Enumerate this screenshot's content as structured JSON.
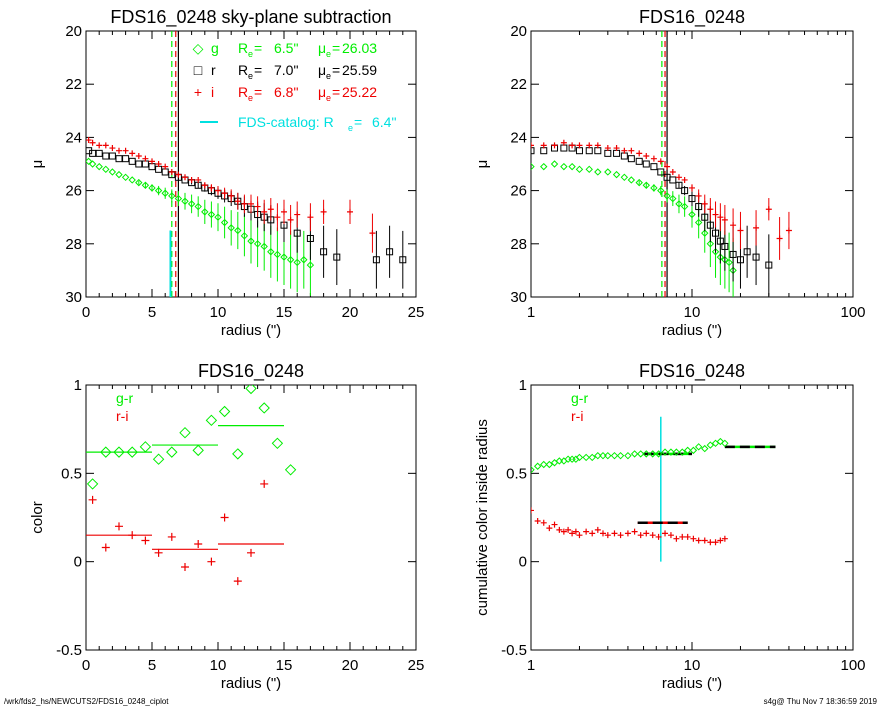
{
  "footer": {
    "left": "/wrk/fds2_hs/NEWCUTS2/FDS16_0248_ciplot",
    "right": "s4g@  Thu Nov  7 18:36:59 2019"
  },
  "colors": {
    "g": "#00ee00",
    "r": "#000000",
    "i": "#ee0000",
    "catalog": "#00e0e0"
  },
  "chart_data": [
    {
      "id": "tl",
      "type": "scatter",
      "title": "FDS16_0248 sky-plane subtraction",
      "xlabel": "radius (\")",
      "ylabel": "μ",
      "xscale": "linear",
      "xlim": [
        0,
        25
      ],
      "ylim": [
        30,
        20
      ],
      "xticks": [
        0,
        5,
        10,
        15,
        20,
        25
      ],
      "yticks": [
        20,
        22,
        24,
        26,
        28,
        30
      ],
      "legend": [
        {
          "symbol": "◇",
          "band": "g",
          "re": "6.5\"",
          "mu": "26.03"
        },
        {
          "symbol": "□",
          "band": "r",
          "re": "7.0\"",
          "mu": "25.59"
        },
        {
          "symbol": "+",
          "band": "i",
          "re": "6.8\"",
          "mu": "25.22"
        }
      ],
      "catalog_label": "FDS-catalog: R",
      "catalog_re": "6.4\"",
      "vlines": [
        {
          "x": 6.5,
          "band": "g",
          "style": "dashed"
        },
        {
          "x": 6.8,
          "band": "i",
          "style": "dashed"
        },
        {
          "x": 7.0,
          "band": "r",
          "style": "solid"
        },
        {
          "x": 6.4,
          "band": "catalog",
          "style": "solid",
          "y1": 27.5,
          "y2": 30
        }
      ],
      "series": [
        {
          "band": "g",
          "x": [
            0.2,
            0.5,
            1,
            1.5,
            2,
            2.5,
            3,
            3.5,
            4,
            4.5,
            5,
            5.5,
            6,
            6.5,
            7,
            7.5,
            8,
            8.5,
            9,
            9.5,
            10,
            10.5,
            11,
            11.5,
            12,
            12.5,
            13,
            13.5,
            14,
            14.5,
            15,
            15.5,
            16,
            16.5,
            17
          ],
          "y": [
            24.9,
            25.0,
            25.1,
            25.2,
            25.3,
            25.4,
            25.5,
            25.6,
            25.7,
            25.8,
            25.9,
            26.0,
            26.1,
            26.2,
            26.3,
            26.4,
            26.5,
            26.6,
            26.8,
            26.9,
            27.0,
            27.2,
            27.4,
            27.5,
            27.7,
            27.9,
            28.0,
            28.1,
            28.3,
            28.4,
            28.5,
            28.6,
            28.7,
            28.6,
            28.8
          ]
        },
        {
          "band": "r",
          "x": [
            0.2,
            0.5,
            1,
            1.5,
            2,
            2.5,
            3,
            3.5,
            4,
            4.5,
            5,
            5.5,
            6,
            6.5,
            7,
            7.5,
            8,
            8.5,
            9,
            9.5,
            10,
            10.5,
            11,
            11.5,
            12,
            12.5,
            13,
            13.5,
            14,
            15,
            16,
            17,
            18,
            19,
            22,
            23,
            24
          ],
          "y": [
            24.5,
            24.6,
            24.6,
            24.7,
            24.7,
            24.8,
            24.8,
            24.9,
            25.0,
            25.0,
            25.1,
            25.2,
            25.3,
            25.4,
            25.5,
            25.6,
            25.7,
            25.8,
            25.9,
            26.0,
            26.1,
            26.2,
            26.3,
            26.4,
            26.6,
            26.7,
            26.9,
            27.0,
            27.1,
            27.3,
            27.6,
            27.8,
            28.3,
            28.5,
            28.6,
            28.3,
            28.6
          ]
        },
        {
          "band": "i",
          "x": [
            0.2,
            0.5,
            1,
            1.5,
            2,
            2.5,
            3,
            3.5,
            4,
            4.5,
            5,
            5.5,
            6,
            6.5,
            7,
            7.5,
            8,
            8.5,
            9,
            9.5,
            10,
            10.5,
            11,
            11.5,
            12,
            12.5,
            13,
            13.5,
            14,
            14.5,
            15,
            15.5,
            16,
            17,
            18,
            20,
            21.7
          ],
          "y": [
            24.1,
            24.2,
            24.3,
            24.3,
            24.4,
            24.5,
            24.5,
            24.6,
            24.7,
            24.8,
            24.9,
            25.0,
            25.1,
            25.3,
            25.4,
            25.5,
            25.6,
            25.6,
            25.8,
            25.9,
            26.0,
            26.1,
            26.2,
            26.4,
            26.5,
            26.5,
            26.6,
            26.8,
            26.7,
            27.0,
            26.8,
            27.1,
            26.9,
            27.0,
            26.8,
            26.8,
            27.6
          ]
        }
      ]
    },
    {
      "id": "tr",
      "type": "scatter",
      "title": "FDS16_0248",
      "xlabel": "radius (\")",
      "ylabel": "μ",
      "xscale": "log",
      "xlim": [
        1,
        100
      ],
      "ylim": [
        30,
        20
      ],
      "xticks": [
        1,
        10,
        100
      ],
      "yticks": [
        20,
        22,
        24,
        26,
        28,
        30
      ],
      "vlines": [
        {
          "x": 6.5,
          "band": "g",
          "style": "dashed"
        },
        {
          "x": 6.8,
          "band": "i",
          "style": "dashed"
        },
        {
          "x": 7.0,
          "band": "r",
          "style": "solid"
        }
      ],
      "series": [
        {
          "band": "g",
          "x": [
            1,
            1.2,
            1.4,
            1.6,
            1.8,
            2,
            2.3,
            2.6,
            3,
            3.4,
            3.8,
            4.2,
            4.7,
            5.2,
            5.8,
            6.4,
            7,
            7.6,
            8.3,
            9,
            10,
            11,
            12,
            13,
            14,
            15,
            16,
            17,
            18
          ],
          "y": [
            25.1,
            25.1,
            25.0,
            25.1,
            25.1,
            25.2,
            25.2,
            25.3,
            25.3,
            25.4,
            25.5,
            25.6,
            25.7,
            25.8,
            25.9,
            26.0,
            26.2,
            26.3,
            26.5,
            26.6,
            26.9,
            27.2,
            27.6,
            28.0,
            28.3,
            28.5,
            28.6,
            28.7,
            29.0
          ]
        },
        {
          "band": "r",
          "x": [
            1,
            1.2,
            1.4,
            1.6,
            1.8,
            2,
            2.3,
            2.6,
            3,
            3.4,
            3.8,
            4.2,
            4.7,
            5.2,
            5.8,
            6.4,
            7,
            7.6,
            8.3,
            9,
            10,
            11,
            12,
            13,
            14,
            15,
            16,
            18,
            20,
            22,
            25,
            30
          ],
          "y": [
            24.5,
            24.5,
            24.4,
            24.4,
            24.4,
            24.5,
            24.5,
            24.5,
            24.6,
            24.6,
            24.7,
            24.8,
            24.9,
            25.0,
            25.1,
            25.3,
            25.5,
            25.6,
            25.8,
            26.0,
            26.3,
            26.6,
            27.0,
            27.3,
            27.6,
            27.9,
            28.1,
            28.4,
            28.6,
            28.3,
            28.5,
            28.8
          ]
        },
        {
          "band": "i",
          "x": [
            1,
            1.2,
            1.4,
            1.6,
            1.8,
            2,
            2.3,
            2.6,
            3,
            3.4,
            3.8,
            4.2,
            4.7,
            5.2,
            5.8,
            6.4,
            7,
            7.6,
            8.3,
            9,
            10,
            11,
            12,
            13,
            14,
            15,
            16,
            18,
            20,
            25,
            30,
            35,
            40
          ],
          "y": [
            24.3,
            24.3,
            24.3,
            24.2,
            24.3,
            24.3,
            24.3,
            24.3,
            24.4,
            24.4,
            24.5,
            24.5,
            24.6,
            24.7,
            24.8,
            24.9,
            25.1,
            25.3,
            25.5,
            25.6,
            25.9,
            26.2,
            26.5,
            26.7,
            26.9,
            27.0,
            27.1,
            27.3,
            27.5,
            27.4,
            26.7,
            27.8,
            27.5
          ]
        }
      ]
    },
    {
      "id": "bl",
      "type": "scatter",
      "title": "FDS16_0248",
      "xlabel": "radius (\")",
      "ylabel": "color",
      "xscale": "linear",
      "xlim": [
        0,
        25
      ],
      "ylim": [
        -0.5,
        1.0
      ],
      "xticks": [
        0,
        5,
        10,
        15,
        20,
        25
      ],
      "yticks": [
        -0.5,
        0.0,
        0.5,
        1.0
      ],
      "legend": [
        "g-r",
        "r-i"
      ],
      "series": [
        {
          "name": "g-r",
          "band": "g",
          "x": [
            0.5,
            1.5,
            2.5,
            3.5,
            4.5,
            5.5,
            6.5,
            7.5,
            8.5,
            9.5,
            10.5,
            11.5,
            12.5,
            13.5,
            14.5,
            15.5
          ],
          "y": [
            0.44,
            0.62,
            0.62,
            0.62,
            0.65,
            0.58,
            0.62,
            0.73,
            0.63,
            0.8,
            0.85,
            0.61,
            0.98,
            0.87,
            0.67,
            0.52
          ]
        },
        {
          "name": "r-i",
          "band": "i",
          "x": [
            0.5,
            1.5,
            2.5,
            3.5,
            4.5,
            5.5,
            6.5,
            7.5,
            8.5,
            9.5,
            10.5,
            11.5,
            12.5,
            13.5
          ],
          "y": [
            0.35,
            0.08,
            0.2,
            0.15,
            0.12,
            0.05,
            0.14,
            -0.03,
            0.1,
            0.0,
            0.25,
            -0.11,
            0.05,
            0.44
          ]
        }
      ],
      "segments": [
        {
          "band": "g",
          "x1": 0,
          "x2": 5,
          "y": 0.62
        },
        {
          "band": "g",
          "x1": 5,
          "x2": 10,
          "y": 0.66
        },
        {
          "band": "g",
          "x1": 10,
          "x2": 15,
          "y": 0.77
        },
        {
          "band": "i",
          "x1": 0,
          "x2": 5,
          "y": 0.15
        },
        {
          "band": "i",
          "x1": 5,
          "x2": 10,
          "y": 0.07
        },
        {
          "band": "i",
          "x1": 10,
          "x2": 15,
          "y": 0.1
        }
      ]
    },
    {
      "id": "br",
      "type": "scatter",
      "title": "FDS16_0248",
      "xlabel": "radius (\")",
      "ylabel": "cumulative color inside radius",
      "xscale": "log",
      "xlim": [
        1,
        100
      ],
      "ylim": [
        -0.5,
        1.0
      ],
      "xticks": [
        1,
        10,
        100
      ],
      "yticks": [
        -0.5,
        0.0,
        0.5,
        1.0
      ],
      "legend": [
        "g-r",
        "r-i"
      ],
      "catalog_re": 6.4,
      "catalog_span": [
        0.0,
        0.82
      ],
      "series": [
        {
          "name": "g-r",
          "band": "g",
          "x": [
            1.0,
            1.1,
            1.2,
            1.3,
            1.4,
            1.5,
            1.6,
            1.7,
            1.8,
            1.9,
            2.0,
            2.2,
            2.4,
            2.6,
            2.8,
            3.0,
            3.3,
            3.6,
            4.0,
            4.4,
            4.8,
            5.2,
            5.7,
            6.2,
            6.8,
            7.4,
            8.0,
            8.7,
            9.4,
            10.2,
            11.0,
            12.0,
            13.0,
            14.0,
            15.0,
            16.0
          ],
          "y": [
            0.52,
            0.54,
            0.55,
            0.55,
            0.56,
            0.57,
            0.57,
            0.58,
            0.58,
            0.58,
            0.59,
            0.59,
            0.59,
            0.6,
            0.6,
            0.6,
            0.6,
            0.6,
            0.6,
            0.61,
            0.61,
            0.61,
            0.61,
            0.61,
            0.62,
            0.62,
            0.62,
            0.62,
            0.63,
            0.63,
            0.65,
            0.64,
            0.66,
            0.67,
            0.68,
            0.67
          ]
        },
        {
          "name": "r-i",
          "band": "i",
          "x": [
            1.0,
            1.1,
            1.2,
            1.3,
            1.4,
            1.5,
            1.6,
            1.7,
            1.8,
            1.9,
            2.0,
            2.2,
            2.4,
            2.6,
            2.8,
            3.0,
            3.3,
            3.6,
            4.0,
            4.4,
            4.8,
            5.2,
            5.7,
            6.2,
            6.8,
            7.4,
            8.0,
            8.7,
            9.4,
            10.2,
            11.0,
            12.0,
            13.0,
            14.0,
            15.0,
            16.0
          ],
          "y": [
            0.29,
            0.23,
            0.22,
            0.19,
            0.21,
            0.18,
            0.17,
            0.18,
            0.16,
            0.17,
            0.15,
            0.17,
            0.16,
            0.18,
            0.16,
            0.15,
            0.16,
            0.15,
            0.16,
            0.17,
            0.15,
            0.16,
            0.15,
            0.14,
            0.16,
            0.15,
            0.13,
            0.14,
            0.14,
            0.13,
            0.12,
            0.12,
            0.11,
            0.11,
            0.12,
            0.13
          ]
        }
      ],
      "segments": [
        {
          "band": "g",
          "x1": 5,
          "x2": 10,
          "y": 0.61,
          "black_dash": true
        },
        {
          "band": "g",
          "x1": 16,
          "x2": 33,
          "y": 0.65,
          "black_dash": true
        },
        {
          "band": "i",
          "x1": 4.6,
          "x2": 9.4,
          "y": 0.22,
          "black_dash": true
        }
      ]
    }
  ]
}
